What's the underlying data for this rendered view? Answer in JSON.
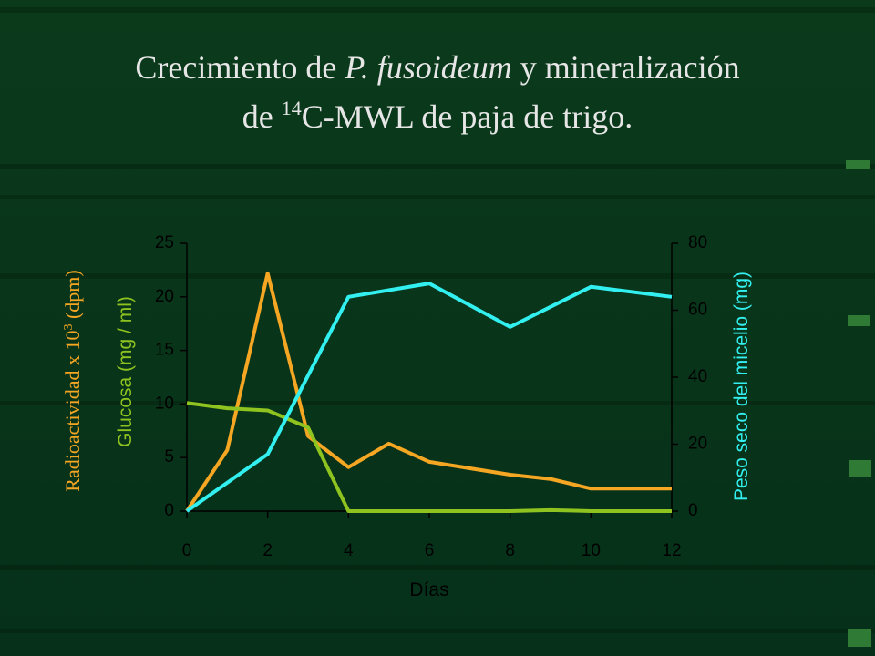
{
  "chart_data": {
    "type": "line",
    "title": [
      "Crecimiento de ",
      "P. fusoideum",
      " y mineralización",
      "de ",
      "14",
      "C-MWL de paja de trigo."
    ],
    "y_label": [
      "Radioactividad x 10",
      "3",
      " (dpm)"
    ],
    "y_label_2": "Glucosa (mg / ml)",
    "y2_label": "Peso seco del micelio (mg)",
    "x_label": "Días",
    "xlim": [
      0,
      12
    ],
    "xticks": [
      0,
      2,
      4,
      6,
      8,
      10,
      12
    ],
    "ylim": [
      0,
      25
    ],
    "yticks": [
      0,
      5,
      10,
      15,
      20,
      25
    ],
    "y2lim": [
      0,
      80
    ],
    "y2ticks": [
      0,
      20,
      40,
      60,
      80
    ],
    "grid": false,
    "series": [
      {
        "color": "#f5a623",
        "x": [
          0,
          1,
          2,
          3,
          4,
          5,
          6,
          8,
          9,
          10,
          12
        ],
        "values": [
          0,
          5.7,
          22.2,
          7.0,
          4.1,
          6.3,
          4.6,
          3.4,
          3.0,
          2.1,
          2.1
        ]
      },
      {
        "color": "#8fc31f",
        "x": [
          0,
          1,
          2,
          3,
          4,
          6,
          8,
          9,
          10,
          12
        ],
        "values": [
          10.1,
          9.6,
          9.4,
          7.8,
          0,
          0,
          0,
          0.1,
          0,
          0
        ]
      },
      {
        "color": "#33f0f0",
        "axis": "y2",
        "x": [
          0,
          2,
          4,
          6,
          8,
          10,
          12
        ],
        "values": [
          0,
          17,
          64,
          68,
          55,
          67,
          64
        ]
      }
    ]
  }
}
